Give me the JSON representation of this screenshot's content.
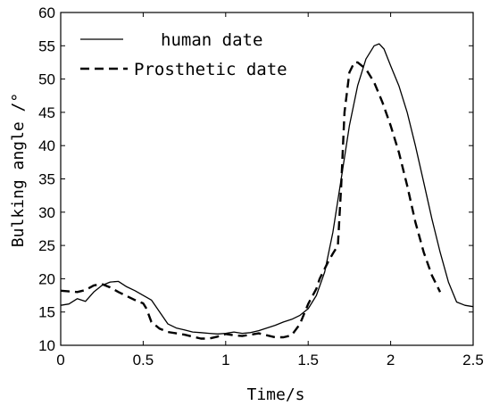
{
  "chart_data": {
    "type": "line",
    "title": "",
    "xlabel": "Time/s",
    "ylabel": "Bulking angle /°",
    "xlim": [
      0,
      2.5
    ],
    "ylim": [
      10,
      60
    ],
    "xticks": [
      0,
      0.5,
      1,
      1.5,
      2,
      2.5
    ],
    "xtick_labels": [
      "0",
      "0.5",
      "1",
      "1.5",
      "2",
      "2.5"
    ],
    "yticks": [
      10,
      15,
      20,
      25,
      30,
      35,
      40,
      45,
      50,
      55,
      60
    ],
    "ytick_labels": [
      "10",
      "15",
      "20",
      "25",
      "30",
      "35",
      "40",
      "45",
      "50",
      "55",
      "60"
    ],
    "grid": false,
    "legend_position": "top-left",
    "series": [
      {
        "name": "human date",
        "style": "solid",
        "color": "#000000",
        "x": [
          0,
          0.05,
          0.1,
          0.15,
          0.2,
          0.25,
          0.3,
          0.35,
          0.4,
          0.45,
          0.5,
          0.55,
          0.6,
          0.65,
          0.7,
          0.75,
          0.8,
          0.85,
          0.9,
          0.95,
          1.0,
          1.05,
          1.1,
          1.15,
          1.2,
          1.25,
          1.3,
          1.35,
          1.4,
          1.45,
          1.5,
          1.55,
          1.6,
          1.65,
          1.7,
          1.75,
          1.8,
          1.85,
          1.9,
          1.93,
          1.96,
          2.0,
          2.05,
          2.1,
          2.15,
          2.2,
          2.25,
          2.3,
          2.35,
          2.4,
          2.45,
          2.5
        ],
        "y": [
          16,
          16.2,
          17.0,
          16.6,
          18.0,
          19.0,
          19.5,
          19.6,
          18.8,
          18.2,
          17.5,
          16.8,
          15.0,
          13.2,
          12.6,
          12.3,
          12.0,
          11.9,
          11.8,
          11.7,
          11.8,
          12.0,
          11.8,
          11.9,
          12.2,
          12.6,
          13.0,
          13.5,
          13.9,
          14.5,
          15.5,
          17.5,
          21.0,
          27.0,
          35.0,
          43.0,
          49.0,
          53.0,
          55.0,
          55.3,
          54.5,
          52.0,
          49.0,
          45.0,
          40.0,
          34.5,
          29.0,
          24.0,
          19.5,
          16.5,
          16.0,
          15.8
        ]
      },
      {
        "name": "Prosthetic date",
        "style": "dashed",
        "color": "#000000",
        "x": [
          0,
          0.05,
          0.1,
          0.15,
          0.2,
          0.25,
          0.3,
          0.35,
          0.4,
          0.45,
          0.5,
          0.52,
          0.55,
          0.6,
          0.65,
          0.7,
          0.75,
          0.8,
          0.85,
          0.9,
          0.95,
          1.0,
          1.05,
          1.1,
          1.15,
          1.2,
          1.25,
          1.3,
          1.35,
          1.4,
          1.45,
          1.5,
          1.55,
          1.57,
          1.6,
          1.62,
          1.65,
          1.68,
          1.7,
          1.72,
          1.75,
          1.78,
          1.8,
          1.85,
          1.9,
          1.95,
          2.0,
          2.05,
          2.1,
          2.15,
          2.2,
          2.25,
          2.3
        ],
        "y": [
          18.2,
          18.1,
          18.0,
          18.3,
          19.0,
          19.2,
          18.7,
          18.0,
          17.4,
          16.8,
          16.3,
          15.5,
          13.5,
          12.5,
          12.0,
          11.8,
          11.6,
          11.3,
          11.0,
          11.0,
          11.3,
          11.7,
          11.5,
          11.4,
          11.6,
          11.8,
          11.5,
          11.2,
          11.2,
          11.5,
          13.2,
          16.2,
          18.5,
          20.0,
          21.5,
          22.5,
          23.8,
          25.0,
          34.0,
          45.0,
          51.0,
          52.5,
          52.5,
          51.5,
          49.5,
          46.5,
          43.0,
          39.0,
          34.0,
          28.5,
          24.0,
          20.5,
          18.0
        ]
      }
    ]
  }
}
